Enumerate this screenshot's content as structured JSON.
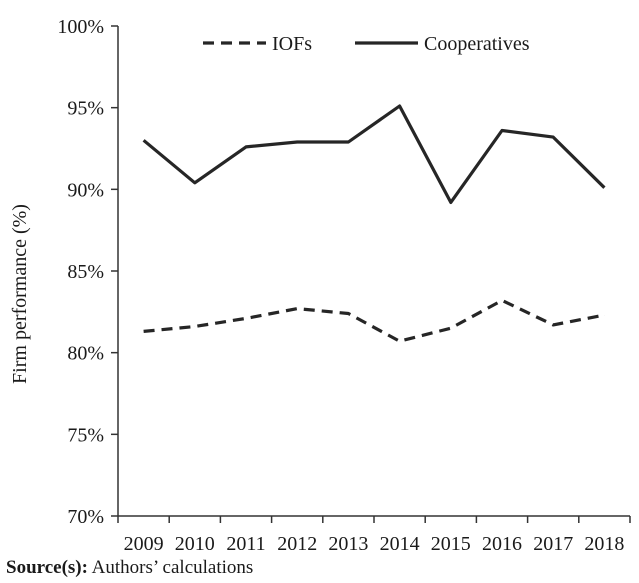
{
  "chart_data": {
    "type": "line",
    "title": "",
    "xlabel": "",
    "ylabel": "Firm performance (%)",
    "x": [
      "2009",
      "2010",
      "2011",
      "2012",
      "2013",
      "2014",
      "2015",
      "2016",
      "2017",
      "2018"
    ],
    "ylim": [
      70,
      100
    ],
    "yticks": [
      "70%",
      "75%",
      "80%",
      "85%",
      "90%",
      "95%",
      "100%"
    ],
    "ytick_values": [
      70,
      75,
      80,
      85,
      90,
      95,
      100
    ],
    "grid": false,
    "legend_position": "top",
    "series": [
      {
        "name": "IOFs",
        "style": "dashed",
        "color": "#262626",
        "values": [
          81.3,
          81.6,
          82.1,
          82.7,
          82.4,
          80.7,
          81.5,
          83.2,
          81.7,
          82.3
        ]
      },
      {
        "name": "Cooperatives",
        "style": "solid",
        "color": "#262626",
        "values": [
          93.0,
          90.4,
          92.6,
          92.9,
          92.9,
          95.1,
          89.2,
          93.6,
          93.2,
          90.1
        ]
      }
    ]
  },
  "source": {
    "label": "Source(s):",
    "text": " Authors’ calculations"
  }
}
